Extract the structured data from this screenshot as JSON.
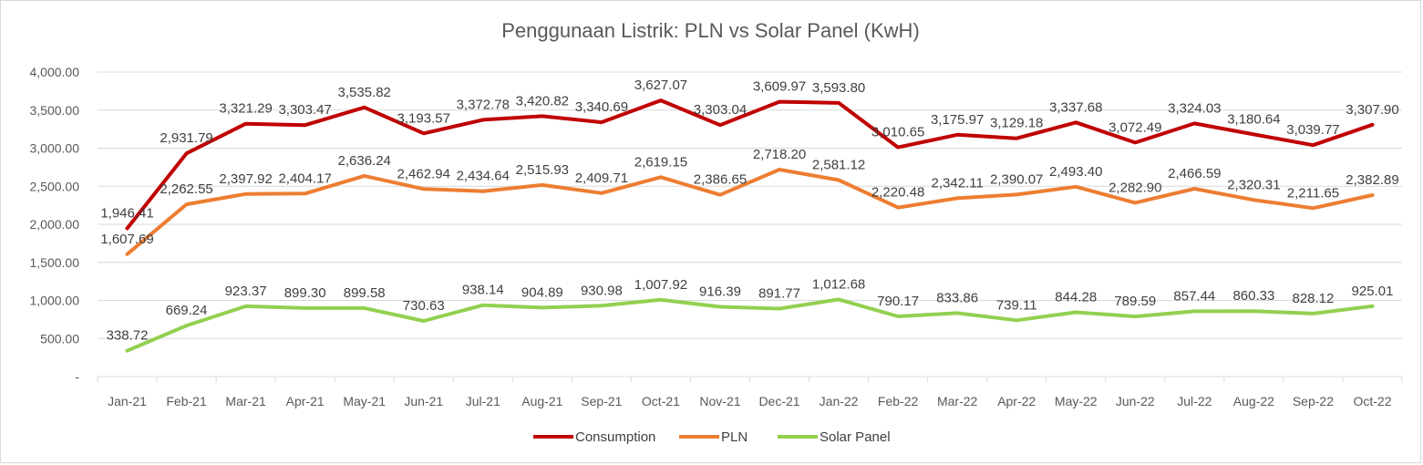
{
  "chart_data": {
    "type": "line",
    "title": "Penggunaan Listrik: PLN vs Solar Panel (KwH)",
    "xlabel": "",
    "ylabel": "",
    "categories": [
      "Jan-21",
      "Feb-21",
      "Mar-21",
      "Apr-21",
      "May-21",
      "Jun-21",
      "Jul-21",
      "Aug-21",
      "Sep-21",
      "Oct-21",
      "Nov-21",
      "Dec-21",
      "Jan-22",
      "Feb-22",
      "Mar-22",
      "Apr-22",
      "May-22",
      "Jun-22",
      "Jul-22",
      "Aug-22",
      "Sep-22",
      "Oct-22"
    ],
    "ylim": [
      0,
      4000
    ],
    "y_ticks": [
      0,
      500,
      1000,
      1500,
      2000,
      2500,
      3000,
      3500,
      4000
    ],
    "y_tick_labels": [
      "-",
      "500.00",
      "1,000.00",
      "1,500.00",
      "2,000.00",
      "2,500.00",
      "3,000.00",
      "3,500.00",
      "4,000.00"
    ],
    "grid": true,
    "legend_position": "bottom",
    "series": [
      {
        "name": "Consumption",
        "color": "#C00000",
        "values": [
          1946.41,
          2931.79,
          3321.29,
          3303.47,
          3535.82,
          3193.57,
          3372.78,
          3420.82,
          3340.69,
          3627.07,
          3303.04,
          3609.97,
          3593.8,
          3010.65,
          3175.97,
          3129.18,
          3337.68,
          3072.49,
          3324.03,
          3180.64,
          3039.77,
          3307.9
        ],
        "labels": [
          "1,946.41",
          "2,931.79",
          "3,321.29",
          "3,303.47",
          "3,535.82",
          "3,193.57",
          "3,372.78",
          "3,420.82",
          "3,340.69",
          "3,627.07",
          "3,303.04",
          "3,609.97",
          "3,593.80",
          "3,010.65",
          "3,175.97",
          "3,129.18",
          "3,337.68",
          "3,072.49",
          "3,324.03",
          "3,180.64",
          "3,039.77",
          "3,307.90"
        ]
      },
      {
        "name": "PLN",
        "color": "#ED7D31",
        "values": [
          1607.69,
          2262.55,
          2397.92,
          2404.17,
          2636.24,
          2462.94,
          2434.64,
          2515.93,
          2409.71,
          2619.15,
          2386.65,
          2718.2,
          2581.12,
          2220.48,
          2342.11,
          2390.07,
          2493.4,
          2282.9,
          2466.59,
          2320.31,
          2211.65,
          2382.89
        ],
        "labels": [
          "1,607.69",
          "2,262.55",
          "2,397.92",
          "2,404.17",
          "2,636.24",
          "2,462.94",
          "2,434.64",
          "2,515.93",
          "2,409.71",
          "2,619.15",
          "2,386.65",
          "2,718.20",
          "2,581.12",
          "2,220.48",
          "2,342.11",
          "2,390.07",
          "2,493.40",
          "2,282.90",
          "2,466.59",
          "2,320.31",
          "2,211.65",
          "2,382.89"
        ]
      },
      {
        "name": "Solar Panel",
        "color": "#92D050",
        "values": [
          338.72,
          669.24,
          923.37,
          899.3,
          899.58,
          730.63,
          938.14,
          904.89,
          930.98,
          1007.92,
          916.39,
          891.77,
          1012.68,
          790.17,
          833.86,
          739.11,
          844.28,
          789.59,
          857.44,
          860.33,
          828.12,
          925.01
        ],
        "labels": [
          "338.72",
          "669.24",
          "923.37",
          "899.30",
          "899.58",
          "730.63",
          "938.14",
          "904.89",
          "930.98",
          "1,007.92",
          "916.39",
          "891.77",
          "1,012.68",
          "790.17",
          "833.86",
          "739.11",
          "844.28",
          "789.59",
          "857.44",
          "860.33",
          "828.12",
          "925.01"
        ]
      }
    ]
  }
}
